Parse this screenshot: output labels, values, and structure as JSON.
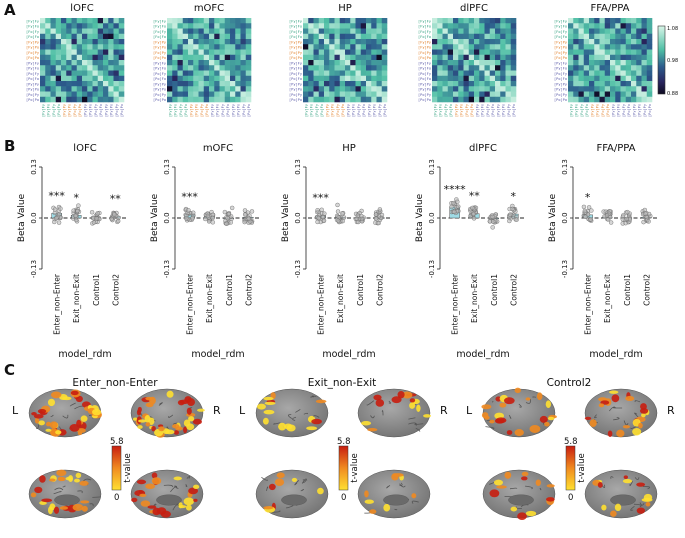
{
  "panel_letters": [
    "A",
    "B",
    "C"
  ],
  "colors": {
    "brand_navy": "#1c1e4d",
    "teal": "#4fbfa5",
    "highlight": "#d9f5e8",
    "bar_fill": "#9fdce6",
    "tick_green": "#2a9d7a",
    "tick_orange": "#e07b22",
    "tick_purple": "#5a5aa8",
    "brain_gray": "#8a8a8a",
    "heat_low": "#ffe030",
    "heat_high": "#c81e10"
  },
  "chart_data": [
    {
      "panel": "A",
      "type": "heatmap",
      "matrices": [
        {
          "title": "lOFC"
        },
        {
          "title": "mOFC"
        },
        {
          "title": "HP"
        },
        {
          "title": "dlPFC"
        },
        {
          "title": "FFA/PPA"
        }
      ],
      "row_labels": [
        "[Fy]Fy",
        "[Fy]Fo",
        "[Fo]Fy",
        "[Fo]Fo",
        "[Fy]Py",
        "[Fy]Po",
        "[Fo]Py",
        "[Fo]Po",
        "[Py]Fy",
        "[Py]Fo",
        "[Po]Fy",
        "[Po]Fo",
        "[Py]Py",
        "[Py]Po",
        "[Po]Py",
        "[Po]Po"
      ],
      "colorbar": {
        "min": 0.88,
        "mid": 0.98,
        "max": 1.08,
        "tick_labels": [
          "1.08",
          "0.98",
          "0.88"
        ]
      }
    },
    {
      "panel": "B",
      "type": "bar",
      "ylabel": "Beta Value",
      "xlabel": "model_rdm",
      "ylim": [
        -0.13,
        0.13
      ],
      "ytick_labels": [
        "0.13",
        "0.0",
        "-0.13"
      ],
      "categories": [
        "Enter_non-Enter",
        "Exit_non-Exit",
        "Control1",
        "Control2"
      ],
      "regions": [
        {
          "title": "lOFC",
          "values": [
            0.012,
            0.007,
            0.001,
            0.004
          ],
          "significance": [
            "***",
            "*",
            "",
            "**"
          ]
        },
        {
          "title": "mOFC",
          "values": [
            0.009,
            0.003,
            0.0,
            0.002
          ],
          "significance": [
            "***",
            "",
            "",
            ""
          ]
        },
        {
          "title": "HP",
          "values": [
            0.006,
            0.002,
            0.001,
            0.001
          ],
          "significance": [
            "***",
            "",
            "",
            ""
          ]
        },
        {
          "title": "dlPFC",
          "values": [
            0.028,
            0.011,
            -0.001,
            0.01
          ],
          "significance": [
            "****",
            "**",
            "",
            "*"
          ]
        },
        {
          "title": "FFA/PPA",
          "values": [
            0.008,
            0.002,
            0.001,
            0.002
          ],
          "significance": [
            "*",
            "",
            "",
            ""
          ]
        }
      ]
    },
    {
      "panel": "C",
      "type": "other",
      "contrasts": [
        {
          "title": "Enter_non-Enter"
        },
        {
          "title": "Exit_non-Exit"
        },
        {
          "title": "Control2"
        }
      ],
      "hemisphere_labels": [
        "L",
        "R"
      ],
      "colorbar": {
        "label": "t-value",
        "min_label": "0",
        "max_label": "5.8"
      }
    }
  ]
}
